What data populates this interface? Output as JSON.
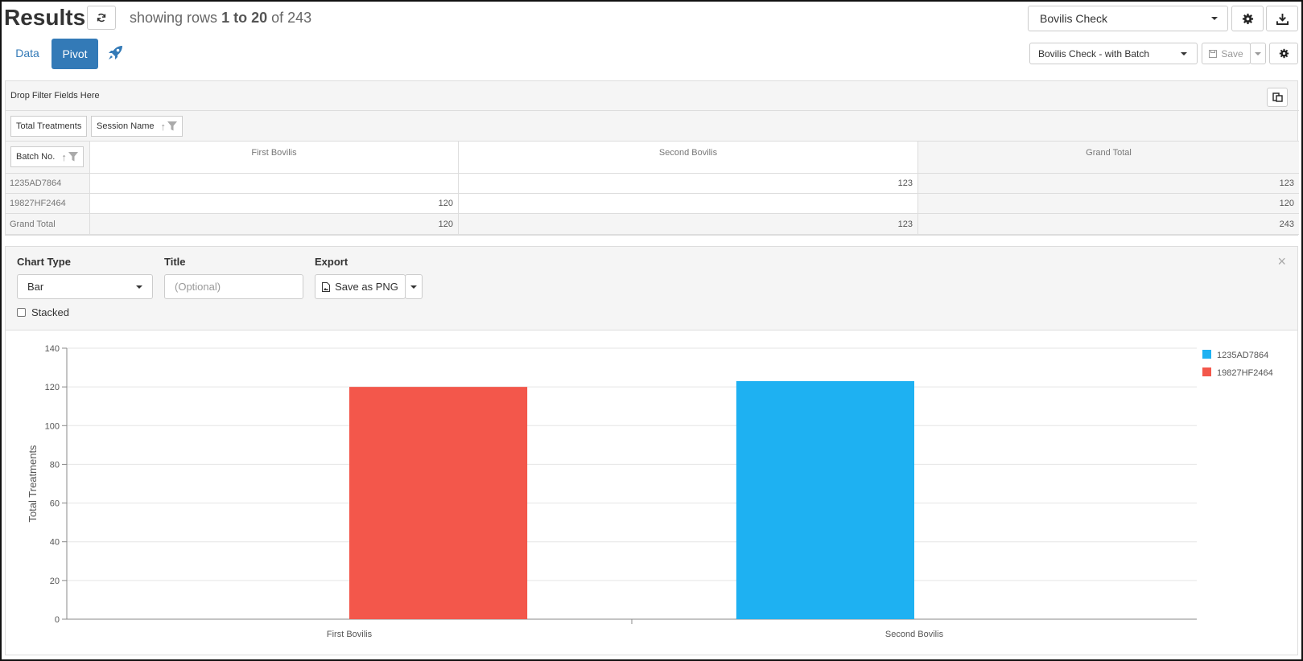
{
  "header": {
    "title": "Results",
    "showing_prefix": "showing rows",
    "showing_range": "1 to 20",
    "showing_of": "of",
    "showing_total": "243",
    "report_select": "Bovilis Check",
    "pivot_select": "Bovilis Check - with Batch",
    "save_label": "Save"
  },
  "tabs": [
    {
      "label": "Data",
      "active": false
    },
    {
      "label": "Pivot",
      "active": true
    }
  ],
  "pivot": {
    "filter_zone": "Drop Filter Fields Here",
    "value_field": "Total Treatments",
    "column_field": "Session Name",
    "row_field": "Batch No.",
    "columns": [
      "First Bovilis",
      "Second Bovilis",
      "Grand Total"
    ],
    "rows": [
      {
        "label": "1235AD7864",
        "values": [
          "",
          "123",
          "123"
        ]
      },
      {
        "label": "19827HF2464",
        "values": [
          "120",
          "",
          "120"
        ]
      },
      {
        "label": "Grand Total",
        "values": [
          "120",
          "123",
          "243"
        ]
      }
    ]
  },
  "chart_panel": {
    "chart_type_label": "Chart Type",
    "chart_type_value": "Bar",
    "title_label": "Title",
    "title_placeholder": "(Optional)",
    "export_label": "Export",
    "export_button": "Save as PNG",
    "stacked_label": "Stacked",
    "close_glyph": "×"
  },
  "chart_data": {
    "type": "bar",
    "categories": [
      "First Bovilis",
      "Second Bovilis"
    ],
    "series": [
      {
        "name": "1235AD7864",
        "color": "#1eb1f2",
        "values": [
          0,
          123
        ]
      },
      {
        "name": "19827HF2464",
        "color": "#f3574b",
        "values": [
          120,
          0
        ]
      }
    ],
    "ylabel": "Total Treatments",
    "xlabel": "",
    "ylim": [
      0,
      140
    ],
    "yticks": [
      0,
      20,
      40,
      60,
      80,
      100,
      120,
      140
    ],
    "grid": true,
    "legend": "top-right",
    "stacked": false
  },
  "colors": {
    "accent": "#337ab7",
    "series_blue": "#1eb1f2",
    "series_red": "#f3574b"
  }
}
